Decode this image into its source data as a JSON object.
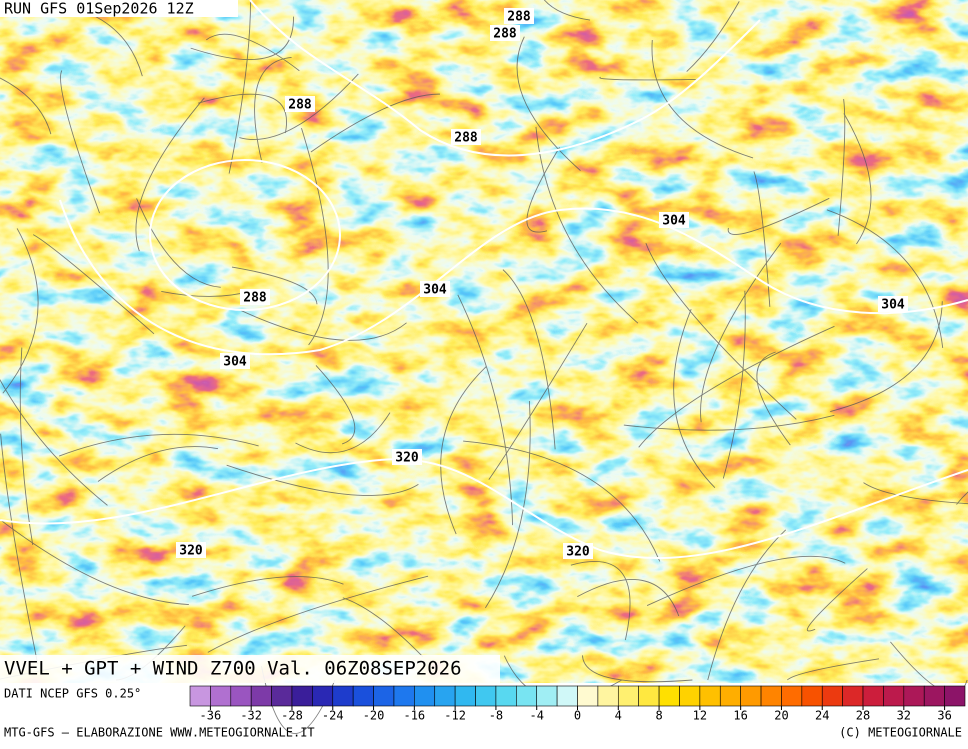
{
  "header": {
    "run": "RUN GFS 01Sep2026 12Z"
  },
  "title": "VVEL + GPT + WIND Z700 Val. 06Z08SEP2026",
  "contour_labels": [
    288,
    288,
    288,
    288,
    288,
    304,
    304,
    304,
    304,
    320,
    320,
    320
  ],
  "source": "DATI NCEP GFS 0.25°",
  "colorbar": {
    "lim": [
      -38,
      38
    ],
    "ticks": [
      -36,
      -32,
      -28,
      -24,
      -20,
      -16,
      -12,
      -8,
      -4,
      0,
      4,
      8,
      12,
      16,
      20,
      24,
      28,
      32,
      36
    ],
    "colors": [
      "#c896e0",
      "#b070d0",
      "#9a55c0",
      "#7d3aa8",
      "#5a2a9a",
      "#3a1e9a",
      "#2a28b4",
      "#1e3ccc",
      "#1a50dc",
      "#1c64e6",
      "#1e78ee",
      "#2090f0",
      "#28a4f0",
      "#30b8f0",
      "#40c8f0",
      "#58d8f0",
      "#78e4f2",
      "#a0eef4",
      "#d0f8f8",
      "#fffad0",
      "#fff5a0",
      "#fff070",
      "#ffe840",
      "#ffe000",
      "#ffd200",
      "#ffc000",
      "#ffae00",
      "#ff9a00",
      "#ff8400",
      "#ff6c00",
      "#f85200",
      "#ec3a10",
      "#dc2828",
      "#cc1e3c",
      "#bc1a4c",
      "#ac1858",
      "#9c1660",
      "#8c1468"
    ]
  },
  "credit_left": "MTG-GFS – ELABORAZIONE WWW.METEOGIORNALE.IT",
  "credit_right": "(C) METEOGIORNALE"
}
